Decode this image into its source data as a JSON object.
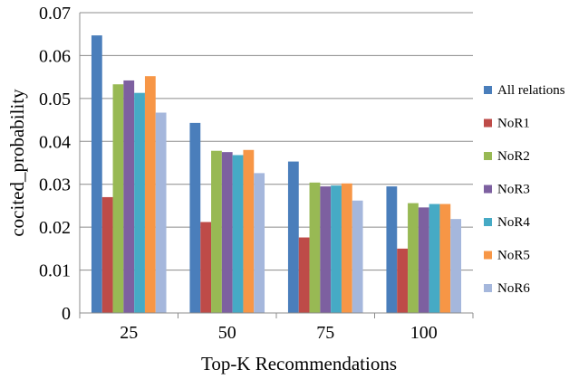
{
  "chart_data": {
    "type": "bar",
    "xlabel": "Top-K Recommendations",
    "ylabel": "cocited_probability",
    "categories": [
      "25",
      "50",
      "75",
      "100"
    ],
    "ylim": [
      0,
      0.07
    ],
    "yticks": [
      0,
      0.01,
      0.02,
      0.03,
      0.04,
      0.05,
      0.06,
      0.07
    ],
    "ytick_labels": [
      "0",
      "0.01",
      "0.02",
      "0.03",
      "0.04",
      "0.05",
      "0.06",
      "0.07"
    ],
    "grid": true,
    "legend_position": "right",
    "series": [
      {
        "name": "All relations",
        "color": "#4a7ebb",
        "values": [
          0.0647,
          0.0443,
          0.0353,
          0.0295
        ]
      },
      {
        "name": "NoR1",
        "color": "#be4b48",
        "values": [
          0.027,
          0.0212,
          0.0176,
          0.015
        ]
      },
      {
        "name": "NoR2",
        "color": "#98b954",
        "values": [
          0.0533,
          0.0378,
          0.0304,
          0.0256
        ]
      },
      {
        "name": "NoR3",
        "color": "#7d60a0",
        "values": [
          0.0542,
          0.0375,
          0.0295,
          0.0246
        ]
      },
      {
        "name": "NoR4",
        "color": "#46aac5",
        "values": [
          0.0513,
          0.0368,
          0.0297,
          0.0254
        ]
      },
      {
        "name": "NoR5",
        "color": "#f79646",
        "values": [
          0.0552,
          0.038,
          0.0302,
          0.0254
        ]
      },
      {
        "name": "NoR6",
        "color": "#a5b7dc",
        "values": [
          0.0467,
          0.0326,
          0.0262,
          0.0219
        ]
      }
    ]
  }
}
